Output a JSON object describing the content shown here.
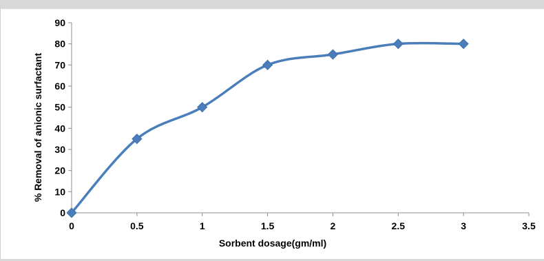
{
  "chart_data": {
    "type": "line",
    "smooth": true,
    "title": "",
    "xlabel": "Sorbent dosage(gm/ml)",
    "ylabel": "% Removal of anionic surfactant",
    "xlim": [
      0,
      3.5
    ],
    "ylim": [
      0,
      90
    ],
    "xticks": [
      "0",
      "0.5",
      "1",
      "1.5",
      "2",
      "2.5",
      "3",
      "3.5"
    ],
    "yticks": [
      "0",
      "10",
      "20",
      "30",
      "40",
      "50",
      "60",
      "70",
      "80",
      "90"
    ],
    "grid": false,
    "legend": "none",
    "marker": "diamond",
    "color": "#4a7ebb",
    "series": [
      {
        "x": [
          0,
          0.5,
          1,
          1.5,
          2,
          2.5,
          3
        ],
        "y": [
          0,
          35,
          50,
          70,
          75,
          80,
          80
        ]
      }
    ]
  }
}
